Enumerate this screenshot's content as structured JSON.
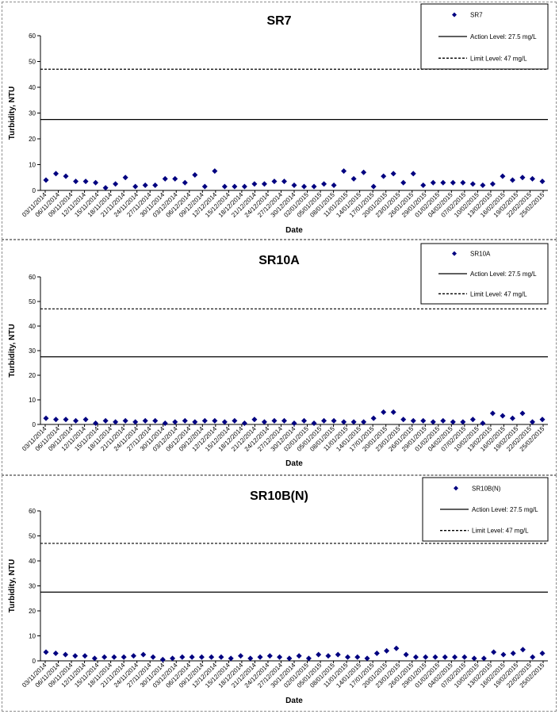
{
  "chart_data": [
    {
      "type": "scatter",
      "title": "SR7",
      "xlabel": "Date",
      "ylabel": "Turbidity, NTU",
      "ylim": [
        0,
        60
      ],
      "yticks": [
        "0",
        "10",
        "20",
        "30",
        "40",
        "50",
        "60"
      ],
      "x_tick_labels": [
        "03/11/2014",
        "06/11/2014",
        "09/11/2014",
        "12/11/2014",
        "15/11/2014",
        "18/11/2014",
        "21/11/2014",
        "24/11/2014",
        "27/11/2014",
        "30/11/2014",
        "03/12/2014",
        "06/12/2014",
        "09/12/2014",
        "12/12/2014",
        "15/12/2014",
        "18/12/2014",
        "21/12/2014",
        "24/12/2014",
        "27/12/2014",
        "30/12/2014",
        "02/01/2015",
        "05/01/2015",
        "08/01/2015",
        "11/01/2015",
        "14/01/2015",
        "17/01/2015",
        "20/01/2015",
        "23/01/2015",
        "26/01/2015",
        "29/01/2015",
        "01/02/2015",
        "04/02/2015",
        "07/02/2015",
        "10/02/2015",
        "13/02/2015",
        "16/02/2015",
        "19/02/2015",
        "22/02/2015",
        "25/02/2015"
      ],
      "legend_position": "top-right",
      "grid": false,
      "series": [
        {
          "name": "SR7",
          "color": "#000080",
          "marker": "diamond",
          "values": [
            4.0,
            6.5,
            5.5,
            3.5,
            3.5,
            3.0,
            1.0,
            2.5,
            5.0,
            1.5,
            2.0,
            2.0,
            4.5,
            4.5,
            3.0,
            6.0,
            1.5,
            7.5,
            1.5,
            1.5,
            1.5,
            2.5,
            2.5,
            3.5,
            3.5,
            2.0,
            1.5,
            1.5,
            2.5,
            2.0,
            7.5,
            4.5,
            7.0,
            1.5,
            5.5,
            6.5,
            3.0,
            6.5,
            2.0,
            3.0,
            3.0,
            3.0,
            3.0,
            2.5,
            2.0,
            2.5,
            5.5,
            4.0,
            5.0,
            4.5,
            3.5
          ]
        }
      ],
      "reference_lines": [
        {
          "name": "Action Level: 27.5 mg/L",
          "value": 27.5,
          "style": "solid"
        },
        {
          "name": "Limit Level: 47 mg/L",
          "value": 47,
          "style": "dashed"
        }
      ]
    },
    {
      "type": "scatter",
      "title": "SR10A",
      "xlabel": "Date",
      "ylabel": "Turbidity, NTU",
      "ylim": [
        0,
        60
      ],
      "yticks": [
        "0",
        "10",
        "20",
        "30",
        "40",
        "50",
        "60"
      ],
      "x_tick_labels": [
        "03/11/2014",
        "06/11/2014",
        "09/11/2014",
        "12/11/2014",
        "15/11/2014",
        "18/11/2014",
        "21/11/2014",
        "24/11/2014",
        "27/11/2014",
        "30/11/2014",
        "03/12/2014",
        "06/12/2014",
        "09/12/2014",
        "12/12/2014",
        "15/12/2014",
        "18/12/2014",
        "21/12/2014",
        "24/12/2014",
        "27/12/2014",
        "30/12/2014",
        "02/01/2015",
        "05/01/2015",
        "08/01/2015",
        "11/01/2015",
        "14/01/2015",
        "17/01/2015",
        "20/01/2015",
        "23/01/2015",
        "26/01/2015",
        "29/01/2015",
        "01/02/2015",
        "04/02/2015",
        "07/02/2015",
        "10/02/2015",
        "13/02/2015",
        "16/02/2015",
        "19/02/2015",
        "22/02/2015",
        "25/02/2015"
      ],
      "legend_position": "top-right",
      "grid": false,
      "series": [
        {
          "name": "SR10A",
          "color": "#000080",
          "marker": "diamond",
          "values": [
            2.5,
            2.0,
            2.0,
            1.5,
            2.0,
            0.5,
            1.5,
            1.0,
            1.5,
            1.0,
            1.5,
            1.5,
            0.5,
            1.0,
            1.5,
            1.0,
            1.5,
            1.5,
            1.0,
            1.5,
            0.5,
            2.0,
            1.0,
            1.5,
            1.5,
            0.5,
            1.5,
            0.5,
            1.5,
            1.5,
            1.0,
            1.0,
            1.0,
            2.5,
            5.0,
            5.0,
            2.0,
            1.5,
            1.5,
            1.0,
            1.5,
            1.0,
            1.0,
            2.0,
            0.5,
            4.5,
            3.5,
            2.5,
            4.5,
            1.0,
            2.0
          ]
        }
      ],
      "reference_lines": [
        {
          "name": "Action Level: 27.5 mg/L",
          "value": 27.5,
          "style": "solid"
        },
        {
          "name": "Limit Level: 47 mg/L",
          "value": 47,
          "style": "dashed"
        }
      ]
    },
    {
      "type": "scatter",
      "title": "SR10B(N)",
      "xlabel": "Date",
      "ylabel": "Turbidity, NTU",
      "ylim": [
        0,
        60
      ],
      "yticks": [
        "0",
        "10",
        "20",
        "30",
        "40",
        "50",
        "60"
      ],
      "x_tick_labels": [
        "03/11/2014",
        "06/11/2014",
        "09/11/2014",
        "12/11/2014",
        "15/11/2014",
        "18/11/2014",
        "21/11/2014",
        "24/11/2014",
        "27/11/2014",
        "30/11/2014",
        "03/12/2014",
        "06/12/2014",
        "09/12/2014",
        "12/12/2014",
        "15/12/2014",
        "18/12/2014",
        "21/12/2014",
        "24/12/2014",
        "27/12/2014",
        "30/12/2014",
        "02/01/2015",
        "05/01/2015",
        "08/01/2015",
        "11/01/2015",
        "14/01/2015",
        "17/01/2015",
        "20/01/2015",
        "23/01/2015",
        "26/01/2015",
        "29/01/2015",
        "01/02/2015",
        "04/02/2015",
        "07/02/2015",
        "10/02/2015",
        "13/02/2015",
        "16/02/2015",
        "19/02/2015",
        "22/02/2015",
        "25/02/2015"
      ],
      "legend_position": "top-right",
      "grid": false,
      "series": [
        {
          "name": "SR10B(N)",
          "color": "#000080",
          "marker": "diamond",
          "values": [
            3.5,
            3.0,
            2.5,
            2.0,
            2.0,
            1.0,
            1.5,
            1.5,
            1.5,
            2.0,
            2.5,
            1.5,
            0.5,
            1.0,
            1.5,
            1.5,
            1.5,
            1.5,
            1.5,
            1.0,
            2.0,
            1.0,
            1.5,
            2.0,
            1.5,
            1.0,
            2.0,
            1.0,
            2.5,
            2.0,
            2.5,
            1.5,
            1.5,
            1.0,
            3.0,
            4.0,
            5.0,
            2.5,
            1.5,
            1.5,
            1.5,
            1.5,
            1.5,
            1.5,
            1.0,
            1.0,
            3.5,
            2.5,
            3.0,
            4.5,
            1.5,
            3.0
          ]
        }
      ],
      "reference_lines": [
        {
          "name": "Action Level: 27.5 mg/L",
          "value": 27.5,
          "style": "solid"
        },
        {
          "name": "Limit Level: 47 mg/L",
          "value": 47,
          "style": "dashed"
        }
      ]
    }
  ]
}
